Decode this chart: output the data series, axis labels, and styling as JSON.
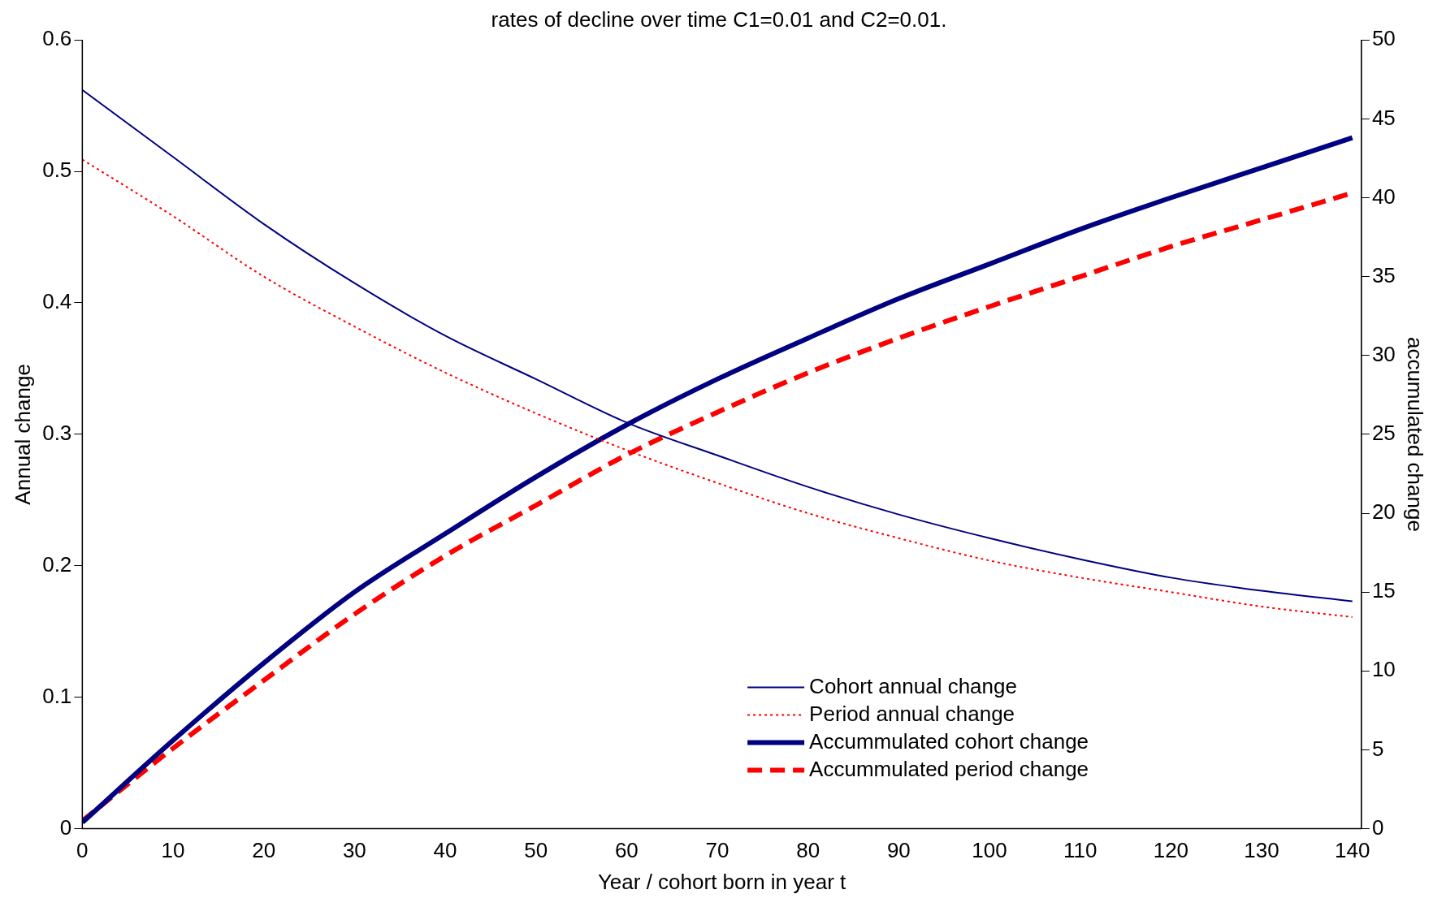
{
  "chart_data": {
    "type": "line",
    "title": "rates of decline over time C1=0.01 and C2=0.01.",
    "xlabel": "Year / cohort born in year t",
    "ylabel": "Annual change",
    "y2label": "accumulated change",
    "x": [
      0,
      10,
      20,
      30,
      40,
      50,
      60,
      70,
      80,
      90,
      100,
      110,
      120,
      130,
      140
    ],
    "series": [
      {
        "name": "Cohort annual change",
        "color": "#000080",
        "line_style": "solid",
        "values": [
          0.562,
          0.511,
          0.46,
          0.415,
          0.375,
          0.342,
          0.309,
          0.284,
          0.26,
          0.239,
          0.221,
          0.205,
          0.191,
          0.181,
          0.173
        ]
      },
      {
        "name": "Period annual change",
        "color": "#ff0000",
        "line_style": "dotted",
        "values": [
          0.509,
          0.466,
          0.42,
          0.382,
          0.347,
          0.316,
          0.288,
          0.263,
          0.24,
          0.221,
          0.204,
          0.191,
          0.18,
          0.169,
          0.161
        ]
      },
      {
        "name": "Accummulated cohort change",
        "color": "#000080",
        "line_style": "solid",
        "axis": "y2",
        "values": [
          0.4,
          5.6,
          10.5,
          15.0,
          18.7,
          22.3,
          25.6,
          28.5,
          31.1,
          33.6,
          35.8,
          38.0,
          40.0,
          41.9,
          43.8
        ]
      },
      {
        "name": "Accummulated period change",
        "color": "#ff0000",
        "line_style": "dashed",
        "axis": "y2",
        "values": [
          0.5,
          5.1,
          9.4,
          13.6,
          17.3,
          20.5,
          23.7,
          26.4,
          28.9,
          31.1,
          33.1,
          35.0,
          36.9,
          38.6,
          40.3
        ]
      }
    ],
    "xlim": [
      0,
      141
    ],
    "xticks": [
      0,
      10,
      20,
      30,
      40,
      50,
      60,
      70,
      80,
      90,
      100,
      110,
      120,
      130,
      140
    ],
    "ylim": [
      0,
      0.6
    ],
    "yticks": [
      0,
      0.1,
      0.2,
      0.3,
      0.4,
      0.5,
      0.6
    ],
    "y2lim": [
      0,
      50
    ],
    "y2ticks": [
      0,
      5,
      10,
      15,
      20,
      25,
      30,
      35,
      40,
      45,
      50
    ],
    "legend": "bottom right",
    "grid": false,
    "marker": "none"
  }
}
